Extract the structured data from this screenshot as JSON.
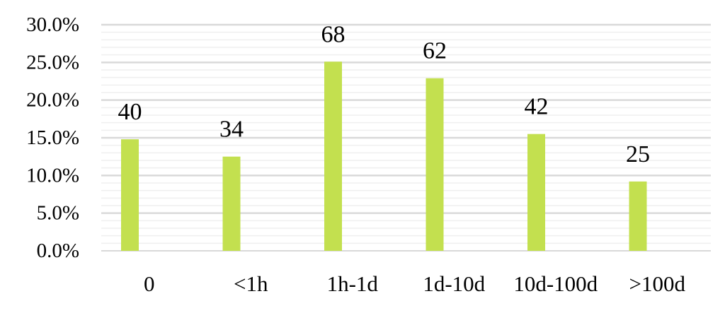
{
  "chart_data": {
    "type": "bar",
    "categories": [
      "0",
      "<1h",
      "1h-1d",
      "1d-10d",
      "10d-100d",
      ">100d"
    ],
    "series": [
      {
        "values": [
          14.8,
          12.5,
          25.1,
          22.9,
          15.5,
          9.2
        ],
        "data_labels": [
          "40",
          "34",
          "68",
          "62",
          "42",
          "25"
        ]
      }
    ],
    "y_tick_labels": [
      "0.0%",
      "5.0%",
      "10.0%",
      "15.0%",
      "20.0%",
      "25.0%",
      "30.0%"
    ],
    "ylim": [
      0,
      30
    ],
    "y_major_step": 5,
    "y_minor_step": 1,
    "grid": true,
    "legend": "none",
    "colors": {
      "bar": "#c3e04f",
      "major_grid": "#d9d9d9",
      "minor_grid": "#efefef",
      "baseline": "#d9d9d9"
    }
  }
}
